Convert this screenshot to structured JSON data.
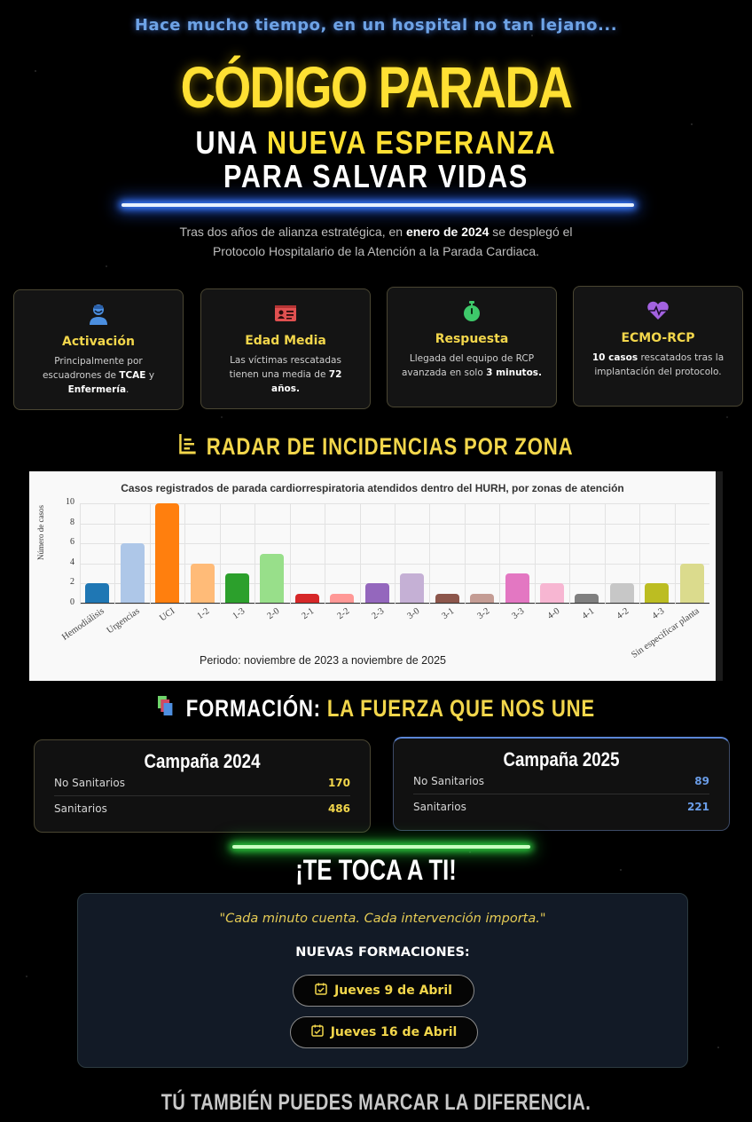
{
  "header": {
    "intro": "Hace mucho tiempo, en un hospital no tan lejano...",
    "title": "CÓDIGO PARADA",
    "subtitle_line1_a": "UNA ",
    "subtitle_line1_b": "NUEVA ESPERANZA",
    "subtitle_line2": "PARA SALVAR VIDAS",
    "lead_a": "Tras dos años de alianza estratégica, en ",
    "lead_b": "enero de 2024",
    "lead_c": " se desplegó el",
    "lead_d": "Protocolo Hospitalario de la Atención a la Parada Cardiaca."
  },
  "cards": [
    {
      "icon": "user-nurse-icon",
      "title": "Activación",
      "t1": "Principalmente por",
      "t2": "escuadrones de ",
      "b1": "TCAE",
      "t3": " y",
      "b2": "Enfermería",
      "t4": "."
    },
    {
      "icon": "id-card-icon",
      "title": "Edad Media",
      "t1": "Las víctimas rescatadas",
      "t2": "tienen una media de ",
      "b1": "72",
      "b2": "años."
    },
    {
      "icon": "stopwatch-icon",
      "title": "Respuesta",
      "t1": "Llegada del equipo de RCP",
      "t2": "avanzada en solo ",
      "b1": "3 minutos."
    },
    {
      "icon": "heart-pulse-icon",
      "title": "ECMO-RCP",
      "b1": "10 casos",
      "t1": " rescatados tras la",
      "t2": "implantación del protocolo."
    }
  ],
  "radar": {
    "heading": "RADAR DE INCIDENCIAS POR ZONA",
    "icon": "chart-bar-icon"
  },
  "chart_data": {
    "type": "bar",
    "title": "Casos registrados de parada cardiorrespiratoria atendidos dentro del HURH, por zonas de atención",
    "xlabel": "",
    "ylabel": "Número de casos",
    "ylim": [
      0,
      10
    ],
    "yticks": [
      "0",
      "2",
      "4",
      "6",
      "8",
      "10"
    ],
    "grid": true,
    "legend": "none",
    "categories": [
      "Hemodiálisis",
      "Urgencias",
      "UCI",
      "1-2",
      "1-3",
      "2-0",
      "2-1",
      "2-2",
      "2-3",
      "3-0",
      "3-1",
      "3-2",
      "3-3",
      "4-0",
      "4-1",
      "4-2",
      "4-3",
      "Sin especificar planta"
    ],
    "values": [
      2,
      6,
      10,
      4,
      3,
      5,
      1,
      1,
      2,
      3,
      1,
      1,
      3,
      2,
      1,
      2,
      2,
      4
    ],
    "colors": [
      "#1f77b4",
      "#aec7e8",
      "#ff7f0e",
      "#ffbb78",
      "#2ca02c",
      "#98df8a",
      "#d62728",
      "#ff9896",
      "#9467bd",
      "#c5b0d5",
      "#8c564b",
      "#c49c94",
      "#e377c2",
      "#f7b6d2",
      "#7f7f7f",
      "#c7c7c7",
      "#bcbd22",
      "#dbdb8d"
    ],
    "footnote": "Periodo: noviembre de 2023 a noviembre de 2025"
  },
  "formacion": {
    "heading_a": "FORMACIÓN: ",
    "heading_b": "LA FUERZA QUE NOS UNE",
    "icon": "books-icon",
    "campaigns": [
      {
        "title": "Campaña 2024",
        "rows": [
          {
            "label": "No Sanitarios",
            "value": "170"
          },
          {
            "label": "Sanitarios",
            "value": "486"
          }
        ]
      },
      {
        "title": "Campaña 2025",
        "rows": [
          {
            "label": "No Sanitarios",
            "value": "89"
          },
          {
            "label": "Sanitarios",
            "value": "221"
          }
        ]
      }
    ]
  },
  "cta": {
    "heading": "¡TE TOCA A TI!",
    "quote": "\"Cada minuto cuenta. Cada intervención importa.\"",
    "subheading": "NUEVAS FORMACIONES:",
    "dates": [
      "Jueves 9 de Abril",
      "Jueves 16 de Abril"
    ]
  },
  "footer": {
    "text": "TÚ TAMBIÉN PUEDES MARCAR LA DIFERENCIA."
  },
  "colors": {
    "accent_yellow": "#f2d64b",
    "saber_blue": "#3a7bff",
    "saber_green": "#2ecc40",
    "campaign_2025_value": "#6a9de8"
  }
}
